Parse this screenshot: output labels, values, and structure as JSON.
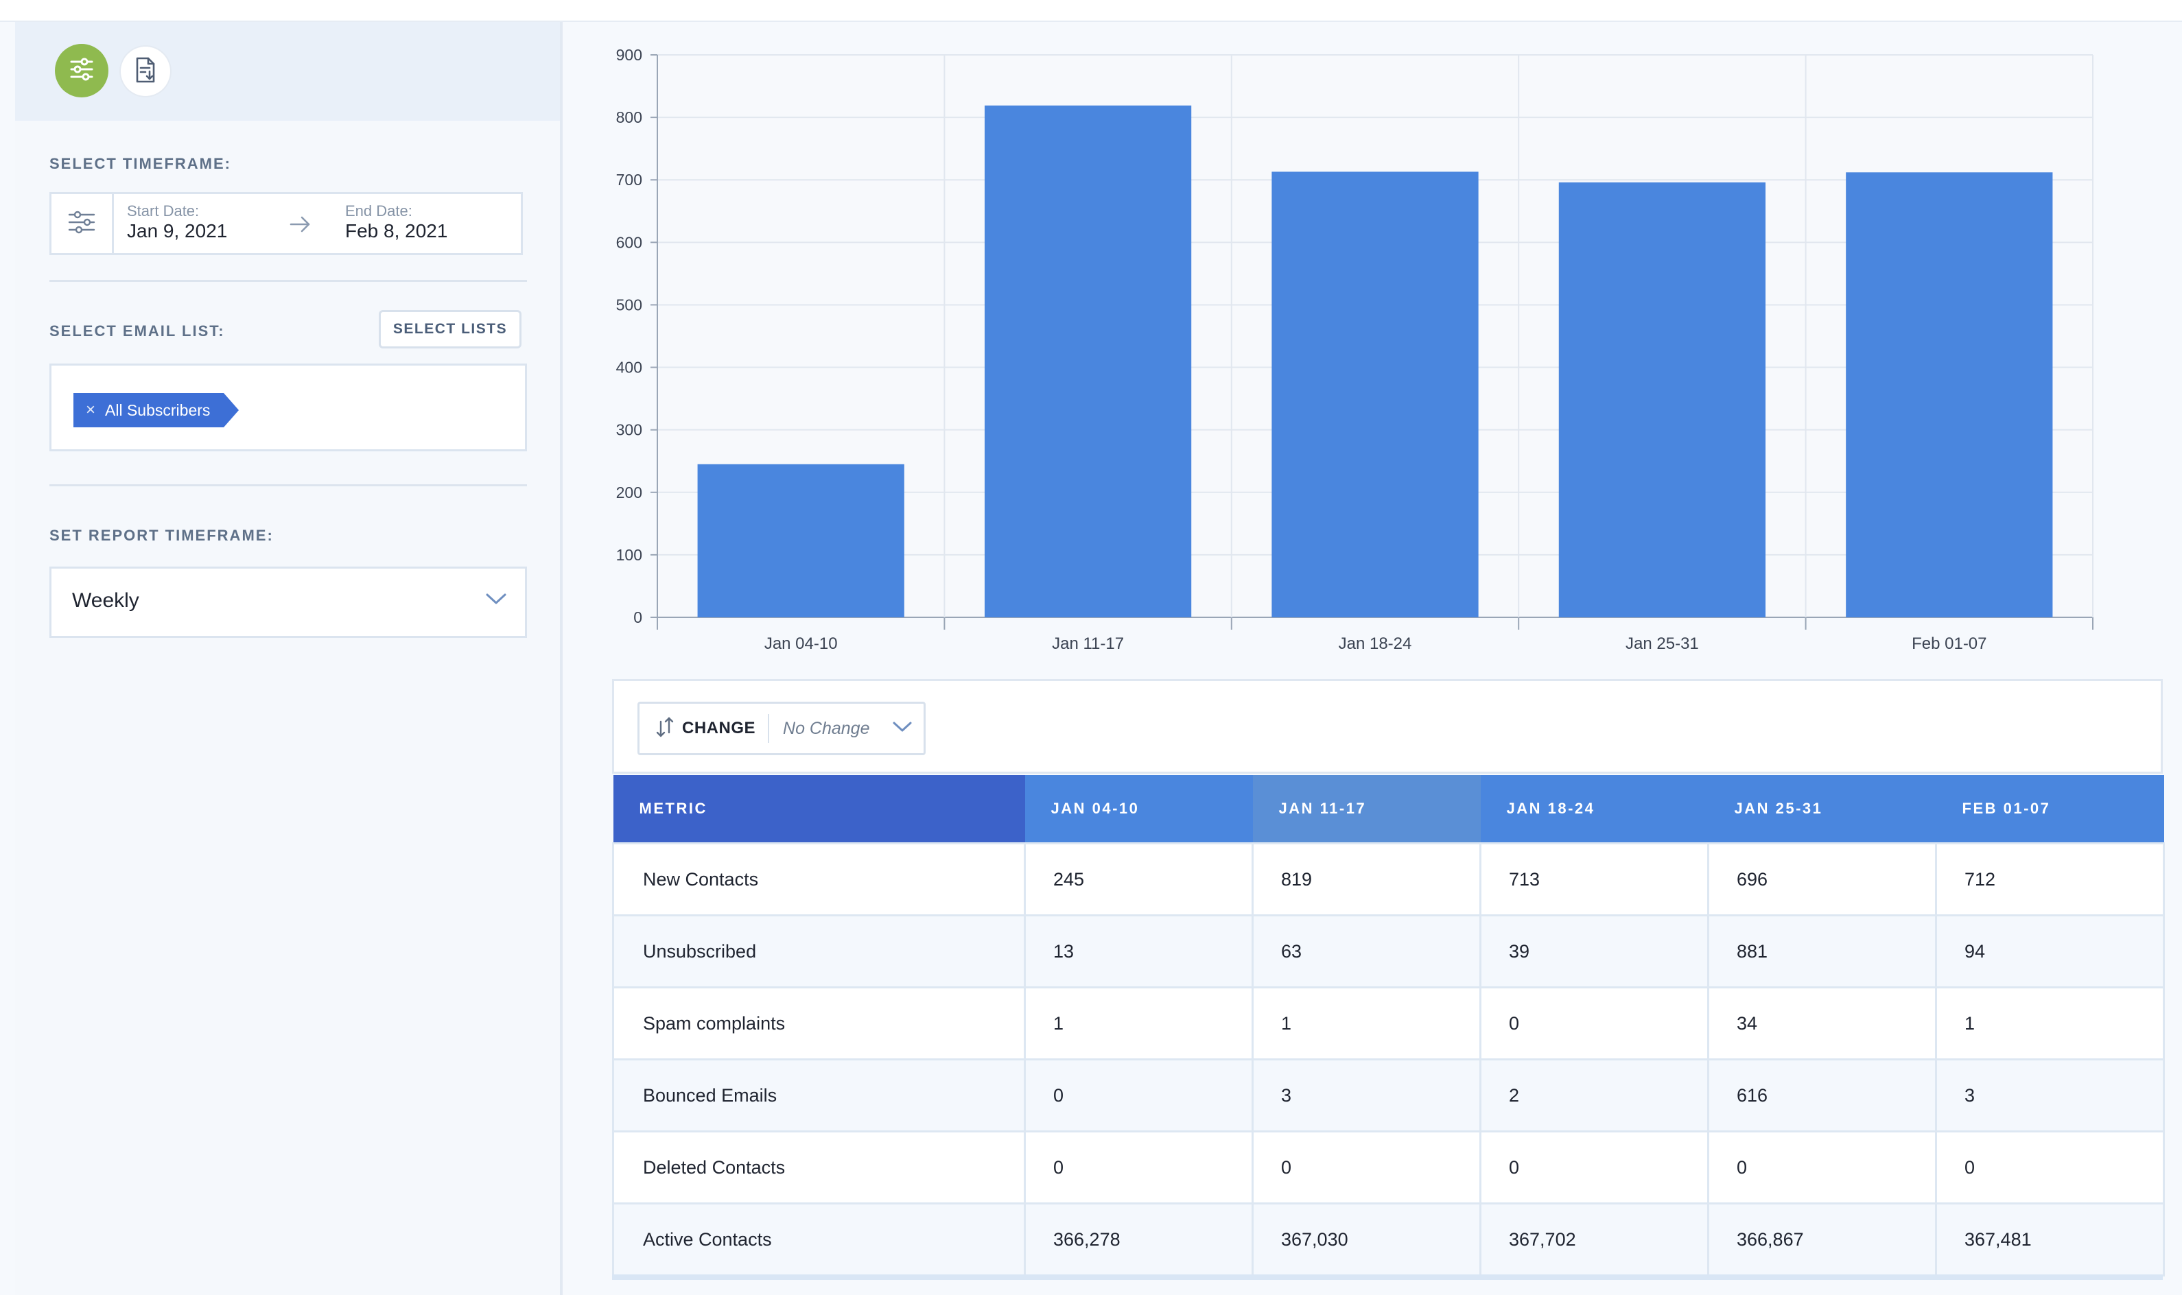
{
  "sidebar": {
    "timeframe_label": "SELECT TIMEFRAME:",
    "start_date_caption": "Start Date:",
    "start_date": "Jan 9, 2021",
    "end_date_caption": "End Date:",
    "end_date": "Feb 8, 2021",
    "email_list_label": "SELECT EMAIL LIST:",
    "select_lists_button": "SELECT LISTS",
    "selected_list": "All Subscribers",
    "remove_tag": "×",
    "report_timeframe_label": "SET REPORT TIMEFRAME:",
    "report_timeframe_value": "Weekly"
  },
  "icons": {
    "filter": "sliders-icon",
    "report": "document-download-icon",
    "date_filter": "sliders-icon",
    "date_arrow": "arrow-right-icon",
    "dropdown": "chevron-down-icon",
    "change": "sort-arrows-icon"
  },
  "colors": {
    "bar": "#4a86de",
    "filter_button": "#8fba4f",
    "tag": "#3d6fd6",
    "header_dark": "#3c62c9",
    "header": "#4a86de",
    "header_alt": "#5a8fd6"
  },
  "chart_data": {
    "type": "bar",
    "categories": [
      "Jan 04-10",
      "Jan 11-17",
      "Jan 18-24",
      "Jan 25-31",
      "Feb 01-07"
    ],
    "values": [
      245,
      819,
      713,
      696,
      712
    ],
    "ylim": [
      0,
      900
    ],
    "yticks": [
      "0",
      "100",
      "200",
      "300",
      "400",
      "500",
      "600",
      "700",
      "800",
      "900"
    ],
    "grid": true
  },
  "change": {
    "label": "CHANGE",
    "value": "No Change"
  },
  "table": {
    "headers": [
      "METRIC",
      "JAN 04-10",
      "JAN 11-17",
      "JAN 18-24",
      "JAN 25-31",
      "FEB 01-07"
    ],
    "rows": [
      [
        "New Contacts",
        "245",
        "819",
        "713",
        "696",
        "712"
      ],
      [
        "Unsubscribed",
        "13",
        "63",
        "39",
        "881",
        "94"
      ],
      [
        "Spam complaints",
        "1",
        "1",
        "0",
        "34",
        "1"
      ],
      [
        "Bounced Emails",
        "0",
        "3",
        "2",
        "616",
        "3"
      ],
      [
        "Deleted Contacts",
        "0",
        "0",
        "0",
        "0",
        "0"
      ],
      [
        "Active Contacts",
        "366,278",
        "367,030",
        "367,702",
        "366,867",
        "367,481"
      ]
    ]
  }
}
